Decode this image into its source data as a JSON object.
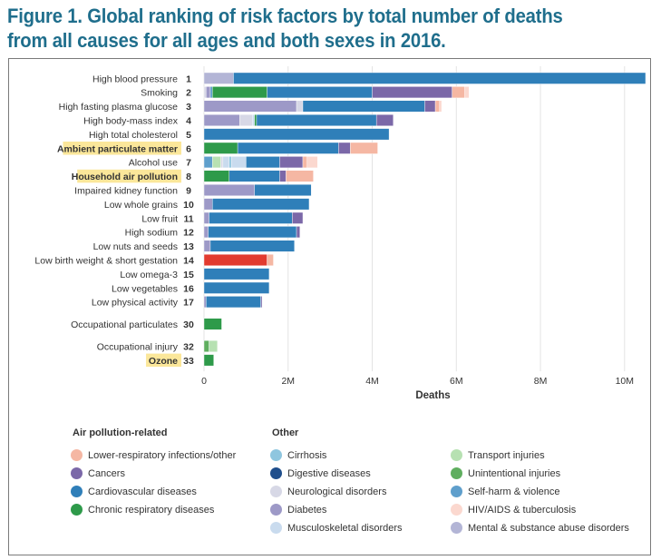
{
  "title": "Figure 1. Global ranking of risk factors by total number of deaths from all causes for all ages and both sexes in 2016.",
  "colors": {
    "lri": "#f5b7a3",
    "cancer": "#7b68a8",
    "cvd": "#2f7fb9",
    "crd": "#2e9a4a",
    "cirrhosis": "#8fc6df",
    "digestive": "#1f4e8c",
    "neuro": "#d7d8e6",
    "diabetes": "#9d99c7",
    "msk": "#c9dbee",
    "transport": "#b7e1b2",
    "unintentional": "#5fae5f",
    "selfharm": "#5f9fcc",
    "hiv": "#fbd8cf",
    "mental": "#b3b5d6",
    "preterm": "#e23b2f",
    "highlight": "#fbe79a"
  },
  "chart_data": {
    "type": "bar",
    "orientation": "horizontal",
    "stacked": true,
    "title": "Global ranking of risk factors by total number of deaths from all causes for all ages and both sexes in 2016",
    "xlabel": "Deaths",
    "ylabel": "",
    "xlim": [
      0,
      10.5
    ],
    "x_units": "millions of deaths",
    "x_ticks": [
      {
        "value": 0,
        "label": "0"
      },
      {
        "value": 2,
        "label": "2M"
      },
      {
        "value": 4,
        "label": "4M"
      },
      {
        "value": 6,
        "label": "6M"
      },
      {
        "value": 8,
        "label": "8M"
      },
      {
        "value": 10,
        "label": "10M"
      }
    ],
    "grid": true,
    "categories": [
      {
        "label": "High blood pressure",
        "rank": "1",
        "highlight": false,
        "segments": [
          {
            "cause": "mental",
            "value": 0.7
          },
          {
            "cause": "cvd",
            "value": 9.8
          }
        ]
      },
      {
        "label": "Smoking",
        "rank": "2",
        "highlight": false,
        "segments": [
          {
            "cause": "neuro",
            "value": 0.05
          },
          {
            "cause": "diabetes",
            "value": 0.1
          },
          {
            "cause": "selfharm",
            "value": 0.05
          },
          {
            "cause": "crd",
            "value": 1.3
          },
          {
            "cause": "cvd",
            "value": 2.5
          },
          {
            "cause": "cancer",
            "value": 1.9
          },
          {
            "cause": "lri",
            "value": 0.3
          },
          {
            "cause": "hiv",
            "value": 0.1
          }
        ]
      },
      {
        "label": "High fasting plasma glucose",
        "rank": "3",
        "highlight": false,
        "segments": [
          {
            "cause": "diabetes",
            "value": 2.2
          },
          {
            "cause": "neuro",
            "value": 0.15
          },
          {
            "cause": "cvd",
            "value": 2.9
          },
          {
            "cause": "cancer",
            "value": 0.25
          },
          {
            "cause": "lri",
            "value": 0.1
          },
          {
            "cause": "hiv",
            "value": 0.05
          }
        ]
      },
      {
        "label": "High body-mass index",
        "rank": "4",
        "highlight": false,
        "segments": [
          {
            "cause": "diabetes",
            "value": 0.85
          },
          {
            "cause": "neuro",
            "value": 0.3
          },
          {
            "cause": "msk",
            "value": 0.05
          },
          {
            "cause": "crd",
            "value": 0.05
          },
          {
            "cause": "cvd",
            "value": 2.85
          },
          {
            "cause": "cancer",
            "value": 0.4
          }
        ]
      },
      {
        "label": "High total cholesterol",
        "rank": "5",
        "highlight": false,
        "segments": [
          {
            "cause": "cvd",
            "value": 4.4
          }
        ]
      },
      {
        "label": "Ambient particulate matter",
        "rank": "6",
        "highlight": true,
        "segments": [
          {
            "cause": "crd",
            "value": 0.8
          },
          {
            "cause": "cvd",
            "value": 2.4
          },
          {
            "cause": "cancer",
            "value": 0.28
          },
          {
            "cause": "lri",
            "value": 0.65
          }
        ]
      },
      {
        "label": "Alcohol use",
        "rank": "7",
        "highlight": false,
        "segments": [
          {
            "cause": "selfharm",
            "value": 0.2
          },
          {
            "cause": "transport",
            "value": 0.2
          },
          {
            "cause": "neuro",
            "value": 0.05
          },
          {
            "cause": "msk",
            "value": 0.15
          },
          {
            "cause": "cirrhosis",
            "value": 0.05
          },
          {
            "cause": "msk",
            "value": 0.35
          },
          {
            "cause": "cvd",
            "value": 0.8
          },
          {
            "cause": "cancer",
            "value": 0.55
          },
          {
            "cause": "lri",
            "value": 0.1
          },
          {
            "cause": "hiv",
            "value": 0.25
          }
        ]
      },
      {
        "label": "Household air pollution",
        "rank": "8",
        "highlight": true,
        "segments": [
          {
            "cause": "crd",
            "value": 0.6
          },
          {
            "cause": "cvd",
            "value": 1.2
          },
          {
            "cause": "cancer",
            "value": 0.15
          },
          {
            "cause": "lri",
            "value": 0.65
          }
        ]
      },
      {
        "label": "Impaired kidney function",
        "rank": "9",
        "highlight": false,
        "segments": [
          {
            "cause": "diabetes",
            "value": 1.2
          },
          {
            "cause": "cvd",
            "value": 1.35
          }
        ]
      },
      {
        "label": "Low whole grains",
        "rank": "10",
        "highlight": false,
        "segments": [
          {
            "cause": "diabetes",
            "value": 0.2
          },
          {
            "cause": "cvd",
            "value": 2.3
          }
        ]
      },
      {
        "label": "Low fruit",
        "rank": "11",
        "highlight": false,
        "segments": [
          {
            "cause": "diabetes",
            "value": 0.12
          },
          {
            "cause": "cvd",
            "value": 1.98
          },
          {
            "cause": "cancer",
            "value": 0.25
          }
        ]
      },
      {
        "label": "High sodium",
        "rank": "12",
        "highlight": false,
        "segments": [
          {
            "cause": "diabetes",
            "value": 0.1
          },
          {
            "cause": "cvd",
            "value": 2.1
          },
          {
            "cause": "cancer",
            "value": 0.08
          }
        ]
      },
      {
        "label": "Low nuts and seeds",
        "rank": "13",
        "highlight": false,
        "segments": [
          {
            "cause": "diabetes",
            "value": 0.15
          },
          {
            "cause": "cvd",
            "value": 2.0
          }
        ]
      },
      {
        "label": "Low birth weight & short gestation",
        "rank": "14",
        "highlight": false,
        "segments": [
          {
            "cause": "preterm",
            "value": 1.5
          },
          {
            "cause": "lri",
            "value": 0.15
          }
        ]
      },
      {
        "label": "Low omega-3",
        "rank": "15",
        "highlight": false,
        "segments": [
          {
            "cause": "cvd",
            "value": 1.55
          }
        ]
      },
      {
        "label": "Low vegetables",
        "rank": "16",
        "highlight": false,
        "segments": [
          {
            "cause": "cvd",
            "value": 1.55
          }
        ]
      },
      {
        "label": "Low physical activity",
        "rank": "17",
        "highlight": false,
        "segments": [
          {
            "cause": "diabetes",
            "value": 0.05
          },
          {
            "cause": "cvd",
            "value": 1.3
          },
          {
            "cause": "cancer",
            "value": 0.03
          }
        ]
      },
      {
        "label": "Occupational particulates",
        "rank": "30",
        "highlight": false,
        "gap_before": true,
        "segments": [
          {
            "cause": "crd",
            "value": 0.42
          }
        ]
      },
      {
        "label": "Occupational injury",
        "rank": "32",
        "highlight": false,
        "gap_before": true,
        "segments": [
          {
            "cause": "unintentional",
            "value": 0.12
          },
          {
            "cause": "transport",
            "value": 0.2
          }
        ]
      },
      {
        "label": "Ozone",
        "rank": "33",
        "highlight": true,
        "segments": [
          {
            "cause": "crd",
            "value": 0.23
          }
        ]
      }
    ]
  },
  "legend": {
    "air_pollution_heading": "Air pollution-related",
    "other_heading": "Other",
    "air_pollution_items": [
      {
        "cause": "lri",
        "label": "Lower-respiratory infections/other"
      },
      {
        "cause": "cancer",
        "label": "Cancers"
      },
      {
        "cause": "cvd",
        "label": "Cardiovascular diseases"
      },
      {
        "cause": "crd",
        "label": "Chronic respiratory diseases"
      }
    ],
    "other_col1": [
      {
        "cause": "cirrhosis",
        "label": "Cirrhosis"
      },
      {
        "cause": "digestive",
        "label": "Digestive diseases"
      },
      {
        "cause": "neuro",
        "label": "Neurological disorders"
      },
      {
        "cause": "diabetes",
        "label": "Diabetes"
      },
      {
        "cause": "msk",
        "label": "Musculoskeletal disorders"
      }
    ],
    "other_col2": [
      {
        "cause": "transport",
        "label": "Transport injuries"
      },
      {
        "cause": "unintentional",
        "label": "Unintentional injuries"
      },
      {
        "cause": "selfharm",
        "label": "Self-harm & violence"
      },
      {
        "cause": "hiv",
        "label": "HIV/AIDS & tuberculosis"
      },
      {
        "cause": "mental",
        "label": "Mental & substance abuse disorders"
      }
    ]
  }
}
